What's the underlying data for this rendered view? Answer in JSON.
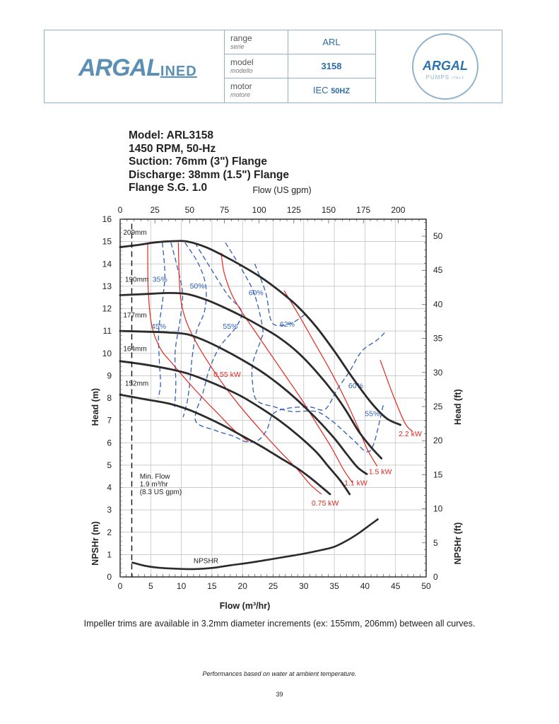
{
  "header": {
    "brand_main": "ARGAL",
    "brand_suffix": "INED",
    "rows": [
      {
        "label": "range",
        "label_it": "serie",
        "value": "ARL"
      },
      {
        "label": "model",
        "label_it": "modello",
        "value": "3158"
      },
      {
        "label": "motor",
        "label_it": "motore",
        "value_prefix": "IEC",
        "value": "50HZ"
      }
    ],
    "badge_brand": "ARGAL",
    "badge_sub": "PUMPS",
    "badge_country": "ITALY"
  },
  "model_info": [
    "Model: ARL3158",
    "1450 RPM, 50-Hz",
    "Suction: 76mm (3\") Flange",
    "Discharge: 38mm (1.5\") Flange",
    "Flange S.G. 1.0"
  ],
  "footer": {
    "trim_note": "Impeller trims are available in 3.2mm diameter increments (ex: 155mm, 206mm) between all curves.",
    "perf_note": "Performances based on water at ambient temperature.",
    "page_number": "39"
  },
  "colors": {
    "head_curve": "#2b2b2b",
    "power_curve": "#e8261f",
    "efficiency_curve": "#2f5fb8",
    "grid": "#bdbdbd",
    "header_border": "#8fb3cf",
    "brand_blue": "#2c6ca8"
  },
  "chart_data": {
    "type": "line",
    "title": "",
    "xlabel": "Flow (m³/hr)",
    "x2label": "Flow (US gpm)",
    "ylabel": "Head (m)",
    "ylabel_lower": "NPSHr (m)",
    "y2label": "Head (ft)",
    "y2label_lower": "NPSHr (ft)",
    "xlim": [
      0,
      50
    ],
    "ylim": [
      0,
      16
    ],
    "xticks": [
      0,
      5,
      10,
      15,
      20,
      25,
      30,
      35,
      40,
      45,
      50
    ],
    "yticks": [
      0,
      1,
      2,
      3,
      4,
      5,
      6,
      7,
      8,
      9,
      10,
      11,
      12,
      13,
      14,
      15,
      16
    ],
    "x2ticks": [
      0,
      25,
      50,
      75,
      100,
      125,
      150,
      175,
      200
    ],
    "y2ticks": [
      0,
      5,
      10,
      15,
      20,
      25,
      30,
      35,
      40,
      45,
      50
    ],
    "grid": true,
    "head_curves": [
      {
        "name": "209mm",
        "points": [
          [
            0,
            14.75
          ],
          [
            3,
            14.85
          ],
          [
            6,
            14.97
          ],
          [
            9,
            15.02
          ],
          [
            11,
            15.0
          ],
          [
            14,
            14.75
          ],
          [
            17,
            14.35
          ],
          [
            20,
            13.9
          ],
          [
            23,
            13.4
          ],
          [
            26,
            12.8
          ],
          [
            29,
            12.1
          ],
          [
            32,
            11.2
          ],
          [
            35,
            10.1
          ],
          [
            38,
            8.9
          ],
          [
            41,
            7.8
          ],
          [
            43.5,
            7.1
          ],
          [
            45.8,
            6.8
          ]
        ]
      },
      {
        "name": "190mm",
        "points": [
          [
            0,
            12.6
          ],
          [
            4,
            12.65
          ],
          [
            8,
            12.7
          ],
          [
            11,
            12.65
          ],
          [
            14,
            12.4
          ],
          [
            17,
            12.05
          ],
          [
            20,
            11.65
          ],
          [
            23,
            11.2
          ],
          [
            26,
            10.7
          ],
          [
            29,
            10.05
          ],
          [
            32,
            9.2
          ],
          [
            35,
            8.2
          ],
          [
            37,
            7.4
          ],
          [
            39,
            6.5
          ],
          [
            41,
            5.8
          ],
          [
            42.7,
            5.3
          ]
        ]
      },
      {
        "name": "177mm",
        "points": [
          [
            0,
            11.0
          ],
          [
            4,
            10.97
          ],
          [
            8,
            10.93
          ],
          [
            11,
            10.85
          ],
          [
            14,
            10.55
          ],
          [
            17,
            10.15
          ],
          [
            20,
            9.7
          ],
          [
            23,
            9.2
          ],
          [
            26,
            8.6
          ],
          [
            29,
            7.9
          ],
          [
            32,
            7.1
          ],
          [
            35,
            6.2
          ],
          [
            37,
            5.5
          ],
          [
            38.8,
            4.9
          ],
          [
            40.3,
            4.6
          ]
        ]
      },
      {
        "name": "164mm",
        "points": [
          [
            0,
            9.65
          ],
          [
            4,
            9.5
          ],
          [
            8,
            9.3
          ],
          [
            11,
            9.1
          ],
          [
            14,
            8.8
          ],
          [
            17,
            8.45
          ],
          [
            20,
            8.05
          ],
          [
            23,
            7.55
          ],
          [
            26,
            7.0
          ],
          [
            29,
            6.35
          ],
          [
            32,
            5.6
          ],
          [
            34,
            4.95
          ],
          [
            36,
            4.3
          ],
          [
            37.5,
            3.7
          ]
        ]
      },
      {
        "name": "152mm",
        "points": [
          [
            0,
            8.15
          ],
          [
            4,
            7.95
          ],
          [
            8,
            7.75
          ],
          [
            11,
            7.5
          ],
          [
            14,
            7.15
          ],
          [
            17,
            6.75
          ],
          [
            20,
            6.3
          ],
          [
            23,
            5.85
          ],
          [
            26,
            5.35
          ],
          [
            29,
            4.85
          ],
          [
            31,
            4.45
          ],
          [
            33,
            4.0
          ],
          [
            34.3,
            3.7
          ]
        ]
      }
    ],
    "power_curves": [
      {
        "name": "0.55 kW",
        "label_at": [
          17.5,
          8.95
        ],
        "points": [
          [
            4.5,
            14.95
          ],
          [
            4.6,
            12.8
          ],
          [
            5.2,
            11.2
          ],
          [
            6.6,
            10.2
          ],
          [
            8.5,
            9.55
          ],
          [
            11,
            8.75
          ],
          [
            13.5,
            8.0
          ],
          [
            16,
            7.3
          ],
          [
            18.5,
            6.6
          ],
          [
            21,
            6.05
          ]
        ]
      },
      {
        "name": "0.75 kW",
        "label_at": [
          33.5,
          3.2
        ],
        "points": [
          [
            9.5,
            14.95
          ],
          [
            9.8,
            12.7
          ],
          [
            10.6,
            11.6
          ],
          [
            12.2,
            10.6
          ],
          [
            14.5,
            9.55
          ],
          [
            17,
            8.55
          ],
          [
            20,
            7.5
          ],
          [
            23,
            6.55
          ],
          [
            26,
            5.65
          ],
          [
            29,
            4.8
          ],
          [
            31,
            4.15
          ],
          [
            32.9,
            3.7
          ]
        ]
      },
      {
        "name": "1.1 kW",
        "label_at": [
          38.5,
          4.1
        ],
        "points": [
          [
            16.5,
            14.5
          ],
          [
            17,
            13.6
          ],
          [
            18.3,
            12.6
          ],
          [
            20,
            11.8
          ],
          [
            22,
            11.0
          ],
          [
            24.5,
            10.0
          ],
          [
            27,
            9.0
          ],
          [
            29.5,
            8.0
          ],
          [
            32,
            6.9
          ],
          [
            34.5,
            5.8
          ],
          [
            36.5,
            4.8
          ],
          [
            38,
            4.2
          ]
        ]
      },
      {
        "name": "1.5 kW",
        "label_at": [
          42.5,
          4.6
        ],
        "points": [
          [
            26.8,
            12.8
          ],
          [
            29,
            11.8
          ],
          [
            31.5,
            10.6
          ],
          [
            34,
            9.4
          ],
          [
            36.5,
            8.1
          ],
          [
            38.7,
            6.8
          ],
          [
            40.4,
            5.7
          ],
          [
            42,
            4.95
          ]
        ]
      },
      {
        "name": "2.2 kW",
        "label_at": [
          47.4,
          6.3
        ],
        "points": [
          [
            42.5,
            9.7
          ],
          [
            44.5,
            8.2
          ],
          [
            46.5,
            6.9
          ],
          [
            47.8,
            6.5
          ]
        ]
      }
    ],
    "efficiency_curves": [
      {
        "name": "35%",
        "label_at": [
          6.5,
          13.2
        ],
        "points": [
          [
            6.9,
            14.95
          ],
          [
            7.3,
            13.6
          ],
          [
            7.0,
            12.5
          ],
          [
            6.3,
            11.0
          ],
          [
            6.4,
            9.7
          ],
          [
            6.6,
            8.6
          ],
          [
            6.2,
            8.0
          ]
        ]
      },
      {
        "name": "45%",
        "label_at": [
          6.3,
          11.1
        ],
        "points": [
          [
            8.3,
            14.95
          ],
          [
            9.3,
            13.9
          ],
          [
            10.2,
            12.7
          ],
          [
            9.8,
            11.5
          ],
          [
            9.0,
            10.1
          ],
          [
            9.1,
            8.6
          ],
          [
            8.9,
            7.6
          ]
        ]
      },
      {
        "name": "50%",
        "label_at": [
          12.6,
          12.9
        ],
        "points": [
          [
            10.6,
            14.95
          ],
          [
            12.8,
            14.0
          ],
          [
            14.0,
            13.0
          ],
          [
            13.8,
            11.9
          ],
          [
            12.5,
            11.0
          ],
          [
            11.8,
            9.9
          ],
          [
            11.5,
            9.0
          ],
          [
            11.0,
            7.9
          ],
          [
            10.3,
            7.15
          ]
        ]
      },
      {
        "name": "55%",
        "label_at": [
          18,
          11.1
        ],
        "points": [
          [
            12.2,
            14.95
          ],
          [
            14.8,
            13.8
          ],
          [
            17.6,
            12.6
          ],
          [
            19.8,
            11.9
          ],
          [
            19.0,
            11.2
          ],
          [
            16.3,
            10.3
          ],
          [
            14.6,
            9.3
          ],
          [
            13.6,
            8.3
          ],
          [
            12.3,
            7.0
          ],
          [
            15.6,
            6.55
          ],
          [
            18.5,
            6.3
          ],
          [
            20.5,
            6.05
          ],
          [
            22.5,
            6.1
          ],
          [
            24.0,
            6.6
          ],
          [
            25.0,
            7.3
          ],
          [
            27.5,
            7.55
          ],
          [
            31,
            7.6
          ],
          [
            33.5,
            7.5
          ],
          [
            35.5,
            8.4
          ],
          [
            37.5,
            9.2
          ],
          [
            39.5,
            10.1
          ],
          [
            42.0,
            10.6
          ],
          [
            43.5,
            11.0
          ]
        ]
      },
      {
        "name": "60%",
        "label_at": [
          22.2,
          12.6
        ],
        "points": [
          [
            17.2,
            14.95
          ],
          [
            20.0,
            13.7
          ],
          [
            22.0,
            12.6
          ],
          [
            23.3,
            11.1
          ],
          [
            23.0,
            10.6
          ],
          [
            21.7,
            9.6
          ],
          [
            21.6,
            8.8
          ],
          [
            22.3,
            7.9
          ],
          [
            25.3,
            7.6
          ],
          [
            28.0,
            7.4
          ],
          [
            32.0,
            7.4
          ],
          [
            34.5,
            7.0
          ],
          [
            36.2,
            6.6
          ],
          [
            38.2,
            6.1
          ],
          [
            40.3,
            5.6
          ],
          [
            41.5,
            6.0
          ],
          [
            43.0,
            7.7
          ]
        ]
      },
      {
        "name": "62%",
        "label_at": [
          27.3,
          11.2
        ],
        "points": [
          [
            22.0,
            14.0
          ],
          [
            23.8,
            12.7
          ],
          [
            24.5,
            11.6
          ],
          [
            25.5,
            11.25
          ],
          [
            28.0,
            11.35
          ],
          [
            30.5,
            11.8
          ]
        ]
      }
    ],
    "efficiency_label_positions": {
      "60%_right": [
        38.5,
        8.45
      ],
      "55%_right": [
        41.2,
        7.2
      ]
    },
    "min_flow": {
      "x": 1.9,
      "label": [
        "Min. Flow",
        "1.9 m³/hr",
        "(8.3 US gpm)"
      ]
    },
    "npshr_curve": {
      "name": "NPSHR",
      "points": [
        [
          1.9,
          0.65
        ],
        [
          4,
          0.5
        ],
        [
          6,
          0.42
        ],
        [
          8,
          0.38
        ],
        [
          10,
          0.36
        ],
        [
          12,
          0.35
        ],
        [
          15,
          0.4
        ],
        [
          18,
          0.52
        ],
        [
          21,
          0.63
        ],
        [
          24,
          0.76
        ],
        [
          27,
          0.9
        ],
        [
          30,
          1.04
        ],
        [
          33,
          1.21
        ],
        [
          35,
          1.35
        ],
        [
          37,
          1.62
        ],
        [
          39,
          1.96
        ],
        [
          41,
          2.36
        ],
        [
          42.2,
          2.6
        ]
      ]
    }
  }
}
